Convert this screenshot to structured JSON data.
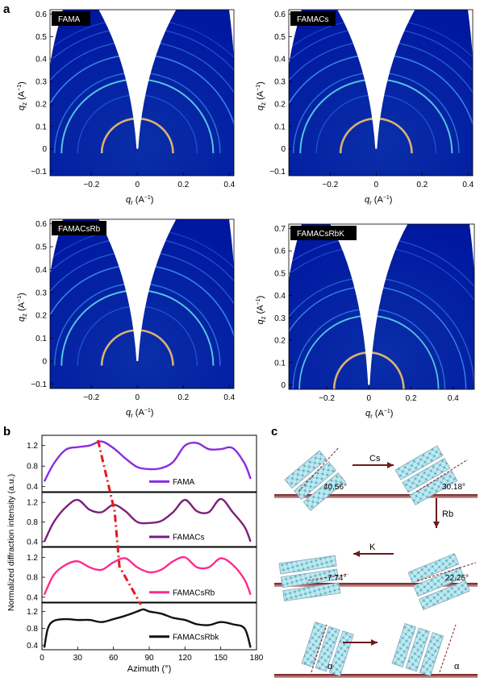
{
  "panel_labels": {
    "a": "a",
    "b": "b",
    "c": "c"
  },
  "giwaxs": {
    "sample_labels": [
      "FAMA",
      "FAMACs",
      "FAMACsRb",
      "FAMACsRbK"
    ],
    "xlabel": "q",
    "xlabel_sub": "r",
    "units": "(A",
    "units_sup": "−1",
    "units_close": ")",
    "ylabel": "q",
    "ylabel_sub": "z",
    "xticks": [
      "−0.2",
      "0",
      "0.2",
      "0.4"
    ],
    "xticks_k": [
      "−0.2",
      "0",
      "0.2",
      "0.4"
    ],
    "yticks": [
      "0.6",
      "0.5",
      "0.4",
      "0.3",
      "0.2",
      "0.1",
      "0",
      "−0.1"
    ],
    "yticks_k": [
      "0.7",
      "0.6",
      "0.5",
      "0.4",
      "0.3",
      "0.2",
      "0.1",
      "0"
    ]
  },
  "chart_data": {
    "type": "line",
    "xlabel": "Azimuth (°)",
    "ylabel": "Normalized diffraction intensity (a.u.)",
    "xlim": [
      0,
      180
    ],
    "xticks": [
      "0",
      "30",
      "60",
      "90",
      "120",
      "150",
      "180"
    ],
    "ylim": [
      0.3,
      1.4
    ],
    "yticks": [
      "1.2",
      "0.8",
      "0.4"
    ],
    "series": [
      {
        "name": "FAMA",
        "color": "#8a2be2",
        "x": [
          2,
          10,
          20,
          30,
          40,
          50,
          60,
          70,
          80,
          90,
          100,
          110,
          120,
          130,
          140,
          150,
          160,
          170,
          175
        ],
        "y": [
          0.5,
          0.85,
          1.12,
          1.17,
          1.2,
          1.28,
          1.15,
          0.95,
          0.78,
          0.74,
          0.76,
          0.88,
          1.2,
          1.25,
          1.13,
          1.13,
          1.15,
          0.85,
          0.55
        ]
      },
      {
        "name": "FAMACs",
        "color": "#7b1f7b",
        "x": [
          2,
          10,
          20,
          30,
          40,
          50,
          60,
          70,
          80,
          90,
          100,
          110,
          120,
          130,
          140,
          150,
          160,
          170,
          175
        ],
        "y": [
          0.4,
          0.8,
          1.1,
          1.25,
          1.05,
          1.0,
          1.15,
          1.02,
          0.8,
          0.78,
          0.82,
          1.0,
          1.25,
          1.02,
          1.0,
          1.27,
          1.0,
          0.7,
          0.4
        ]
      },
      {
        "name": "FAMACsRb",
        "color": "#ff2a8f",
        "x": [
          2,
          10,
          20,
          30,
          40,
          50,
          60,
          70,
          80,
          90,
          100,
          110,
          120,
          130,
          140,
          150,
          160,
          170,
          175
        ],
        "y": [
          0.45,
          0.85,
          1.05,
          1.12,
          1.0,
          0.95,
          1.1,
          1.18,
          1.0,
          0.9,
          0.95,
          1.12,
          1.2,
          1.0,
          1.0,
          1.18,
          1.05,
          0.75,
          0.45
        ]
      },
      {
        "name": "FAMACsRbk",
        "color": "#111111",
        "x": [
          2,
          5,
          10,
          20,
          30,
          40,
          50,
          60,
          70,
          80,
          85,
          90,
          100,
          110,
          120,
          130,
          140,
          150,
          160,
          170,
          175
        ],
        "y": [
          0.35,
          0.8,
          0.98,
          1.02,
          1.0,
          1.0,
          0.95,
          1.02,
          1.1,
          1.2,
          1.25,
          1.2,
          1.15,
          1.05,
          1.0,
          0.9,
          0.88,
          0.95,
          0.9,
          0.8,
          0.35
        ]
      }
    ],
    "peak_trend_line": {
      "color": "#e41a1c",
      "points_x": [
        47,
        61,
        65,
        83
      ]
    }
  },
  "orientation": {
    "angles": [
      "40.56°",
      "30.18°",
      "22.25°",
      "7.74°"
    ],
    "cations": [
      "Cs",
      "Rb",
      "K"
    ],
    "alpha": "α"
  }
}
